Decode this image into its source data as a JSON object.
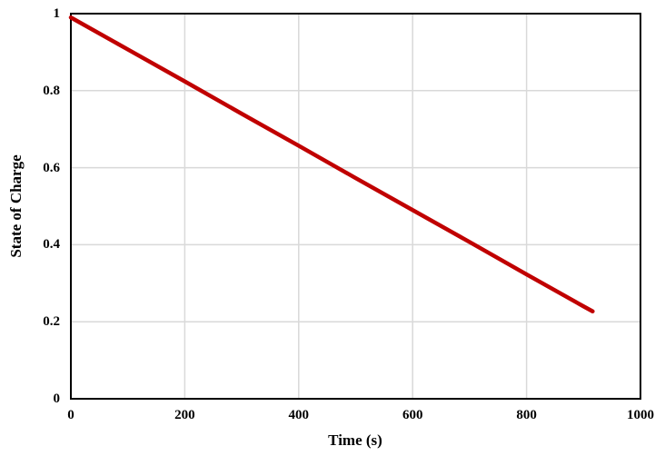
{
  "chart_data": {
    "type": "line",
    "title": "",
    "xlabel": "Time (s)",
    "ylabel": "State of Charge",
    "xlim": [
      0,
      1000
    ],
    "ylim": [
      0,
      1
    ],
    "x_ticks": [
      0,
      200,
      400,
      600,
      800,
      1000
    ],
    "x_tick_labels": [
      "0",
      "200",
      "400",
      "600",
      "800",
      "1000"
    ],
    "y_ticks": [
      0,
      0.2,
      0.4,
      0.6,
      0.8,
      1
    ],
    "y_tick_labels": [
      "0",
      "0.2",
      "0.4",
      "0.6",
      "0.8",
      "1"
    ],
    "grid": "both",
    "legend": "none",
    "series": [
      {
        "name": "State of Charge",
        "color": "#C00000",
        "line_width": 4.5,
        "points": [
          [
            0,
            0.99
          ],
          [
            100,
            0.907
          ],
          [
            200,
            0.824
          ],
          [
            300,
            0.74
          ],
          [
            400,
            0.657
          ],
          [
            500,
            0.573
          ],
          [
            600,
            0.49
          ],
          [
            700,
            0.407
          ],
          [
            800,
            0.323
          ],
          [
            900,
            0.24
          ],
          [
            916,
            0.227
          ]
        ]
      }
    ]
  },
  "colors": {
    "background": "#FFFFFF",
    "grid": "#D9D9D9",
    "axis": "#000000",
    "line": "#C00000",
    "text": "#000000"
  }
}
